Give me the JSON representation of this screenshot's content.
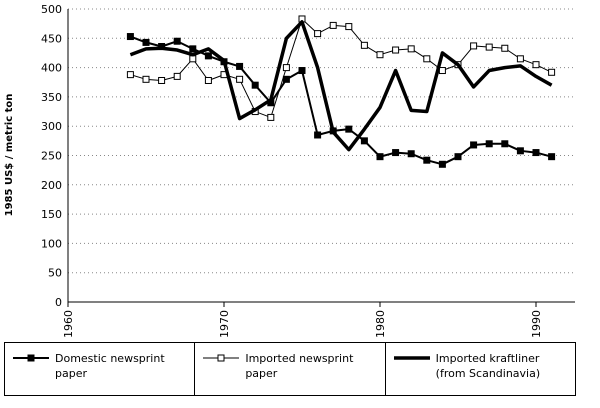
{
  "chart_data": {
    "type": "line",
    "y_label": "1985 US$ / metric ton",
    "x": [
      1964,
      1965,
      1966,
      1967,
      1968,
      1969,
      1970,
      1971,
      1972,
      1973,
      1974,
      1975,
      1976,
      1977,
      1978,
      1979,
      1980,
      1981,
      1982,
      1983,
      1984,
      1985,
      1986,
      1987,
      1988,
      1989,
      1990,
      1991
    ],
    "series": [
      {
        "name": "Domestic newsprint paper",
        "color": "#000000",
        "marker": "filled-square",
        "linewidth": 2,
        "values": [
          453,
          443,
          436,
          445,
          432,
          420,
          410,
          402,
          370,
          340,
          380,
          395,
          285,
          292,
          295,
          275,
          248,
          255,
          253,
          242,
          235,
          248,
          268,
          270,
          270,
          258,
          255,
          248
        ]
      },
      {
        "name": "Imported newsprint paper",
        "color": "#000000",
        "marker": "open-square",
        "linewidth": 1,
        "values": [
          388,
          380,
          378,
          385,
          415,
          378,
          388,
          380,
          325,
          315,
          400,
          483,
          458,
          472,
          470,
          438,
          422,
          430,
          432,
          415,
          395,
          405,
          437,
          435,
          433,
          415,
          405,
          392
        ]
      },
      {
        "name": "Imported kraftliner (from Scandinavia)",
        "color": "#000000",
        "marker": "none",
        "linewidth": 3.5,
        "values": [
          422,
          432,
          433,
          430,
          422,
          432,
          412,
          313,
          328,
          345,
          450,
          478,
          400,
          290,
          260,
          295,
          332,
          395,
          327,
          325,
          425,
          405,
          367,
          395,
          400,
          403,
          385,
          370
        ]
      }
    ],
    "xlim": [
      1960,
      1992.5
    ],
    "xticks": [
      1960,
      1970,
      1980,
      1990
    ],
    "ylim": [
      0,
      500
    ],
    "yticks": [
      0,
      50,
      100,
      150,
      200,
      250,
      300,
      350,
      400,
      450,
      500
    ],
    "grid": true
  }
}
